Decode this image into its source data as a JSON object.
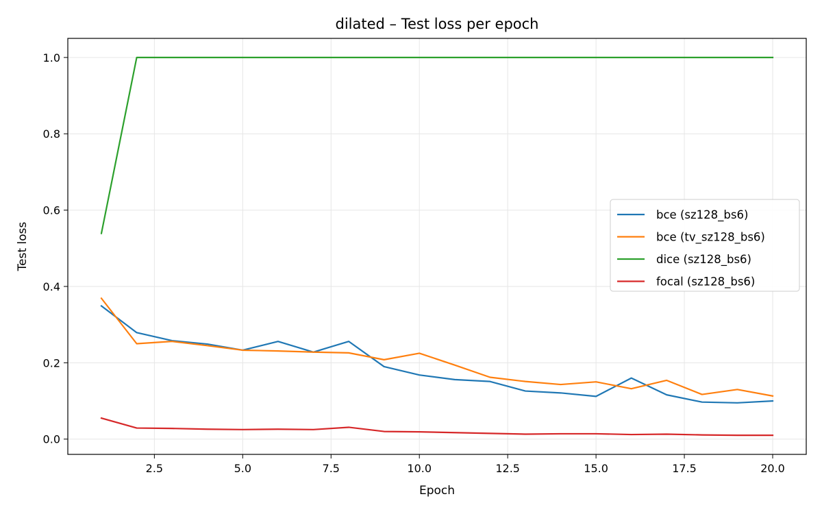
{
  "chart_data": {
    "type": "line",
    "title": "dilated – Test loss per epoch",
    "xlabel": "Epoch",
    "ylabel": "Test loss",
    "xlim": [
      0.05,
      20.95
    ],
    "ylim": [
      -0.04,
      1.05
    ],
    "xticks": [
      2.5,
      5.0,
      7.5,
      10.0,
      12.5,
      15.0,
      17.5,
      20.0
    ],
    "yticks": [
      0.0,
      0.2,
      0.4,
      0.6,
      0.8,
      1.0
    ],
    "grid": true,
    "legend_position": "center-right",
    "x": [
      1,
      2,
      3,
      4,
      5,
      6,
      7,
      8,
      9,
      10,
      11,
      12,
      13,
      14,
      15,
      16,
      17,
      18,
      19,
      20
    ],
    "series": [
      {
        "name": "bce (sz128_bs6)",
        "color": "#1f77b4",
        "values": [
          0.349,
          0.279,
          0.258,
          0.249,
          0.233,
          0.256,
          0.228,
          0.256,
          0.19,
          0.168,
          0.156,
          0.151,
          0.126,
          0.121,
          0.112,
          0.16,
          0.116,
          0.097,
          0.095,
          0.1
        ]
      },
      {
        "name": "bce (tv_sz128_bs6)",
        "color": "#ff7f0e",
        "values": [
          0.369,
          0.25,
          0.256,
          0.245,
          0.233,
          0.231,
          0.228,
          0.226,
          0.208,
          0.225,
          0.194,
          0.162,
          0.151,
          0.143,
          0.15,
          0.132,
          0.154,
          0.117,
          0.13,
          0.113
        ]
      },
      {
        "name": "dice (sz128_bs6)",
        "color": "#2ca02c",
        "values": [
          0.539,
          1.0,
          1.0,
          1.0,
          1.0,
          1.0,
          1.0,
          1.0,
          1.0,
          1.0,
          1.0,
          1.0,
          1.0,
          1.0,
          1.0,
          1.0,
          1.0,
          1.0,
          1.0,
          1.0
        ]
      },
      {
        "name": "focal (sz128_bs6)",
        "color": "#d62728",
        "values": [
          0.055,
          0.029,
          0.028,
          0.026,
          0.025,
          0.026,
          0.025,
          0.031,
          0.02,
          0.019,
          0.017,
          0.015,
          0.013,
          0.014,
          0.014,
          0.012,
          0.013,
          0.011,
          0.01,
          0.01
        ]
      }
    ]
  }
}
